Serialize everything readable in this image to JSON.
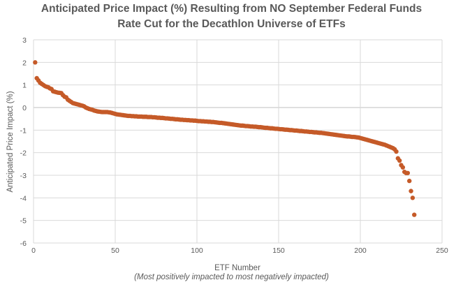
{
  "chart_data": {
    "type": "scatter",
    "title_lines": [
      "Anticipated Price Impact (%) Resulting from NO September Federal Funds",
      "Rate Cut for the Decathlon Universe of ETFs"
    ],
    "xlabel": "ETF Number",
    "xlabel_sub": "(Most positively impacted to most negatively impacted)",
    "ylabel": "Anticipated Price Impact (%)",
    "xlim": [
      0,
      250
    ],
    "ylim": [
      -6,
      3
    ],
    "xticks": [
      0,
      50,
      100,
      150,
      200,
      250
    ],
    "yticks": [
      3,
      2,
      1,
      0,
      -1,
      -2,
      -3,
      -4,
      -5,
      -6
    ],
    "grid": true,
    "marker_color": "#C55A28",
    "series": [
      {
        "name": "ETFs",
        "x_start": 1,
        "values": [
          2.0,
          1.3,
          1.2,
          1.1,
          1.05,
          1.0,
          0.95,
          0.92,
          0.9,
          0.85,
          0.82,
          0.72,
          0.7,
          0.68,
          0.66,
          0.65,
          0.64,
          0.55,
          0.48,
          0.45,
          0.35,
          0.3,
          0.25,
          0.2,
          0.18,
          0.16,
          0.14,
          0.12,
          0.1,
          0.08,
          0.05,
          0.0,
          -0.03,
          -0.06,
          -0.08,
          -0.1,
          -0.13,
          -0.15,
          -0.17,
          -0.18,
          -0.19,
          -0.2,
          -0.2,
          -0.2,
          -0.2,
          -0.21,
          -0.22,
          -0.24,
          -0.26,
          -0.28,
          -0.3,
          -0.31,
          -0.32,
          -0.33,
          -0.34,
          -0.35,
          -0.36,
          -0.37,
          -0.37,
          -0.38,
          -0.38,
          -0.39,
          -0.39,
          -0.4,
          -0.4,
          -0.4,
          -0.41,
          -0.41,
          -0.41,
          -0.42,
          -0.42,
          -0.42,
          -0.43,
          -0.43,
          -0.44,
          -0.45,
          -0.45,
          -0.46,
          -0.46,
          -0.47,
          -0.48,
          -0.48,
          -0.49,
          -0.5,
          -0.5,
          -0.51,
          -0.52,
          -0.52,
          -0.53,
          -0.54,
          -0.54,
          -0.55,
          -0.55,
          -0.56,
          -0.56,
          -0.57,
          -0.57,
          -0.58,
          -0.58,
          -0.59,
          -0.6,
          -0.6,
          -0.61,
          -0.61,
          -0.62,
          -0.62,
          -0.63,
          -0.63,
          -0.64,
          -0.64,
          -0.65,
          -0.66,
          -0.67,
          -0.68,
          -0.68,
          -0.69,
          -0.7,
          -0.71,
          -0.72,
          -0.73,
          -0.74,
          -0.75,
          -0.76,
          -0.77,
          -0.78,
          -0.79,
          -0.8,
          -0.8,
          -0.81,
          -0.82,
          -0.82,
          -0.83,
          -0.84,
          -0.84,
          -0.85,
          -0.85,
          -0.86,
          -0.87,
          -0.87,
          -0.88,
          -0.89,
          -0.9,
          -0.9,
          -0.91,
          -0.92,
          -0.92,
          -0.93,
          -0.94,
          -0.94,
          -0.95,
          -0.96,
          -0.96,
          -0.97,
          -0.98,
          -0.98,
          -0.99,
          -1.0,
          -1.0,
          -1.01,
          -1.02,
          -1.02,
          -1.03,
          -1.04,
          -1.04,
          -1.05,
          -1.06,
          -1.06,
          -1.07,
          -1.08,
          -1.08,
          -1.09,
          -1.1,
          -1.1,
          -1.11,
          -1.12,
          -1.12,
          -1.13,
          -1.14,
          -1.15,
          -1.16,
          -1.17,
          -1.18,
          -1.19,
          -1.2,
          -1.21,
          -1.22,
          -1.23,
          -1.24,
          -1.25,
          -1.26,
          -1.27,
          -1.28,
          -1.28,
          -1.29,
          -1.3,
          -1.3,
          -1.31,
          -1.32,
          -1.33,
          -1.35,
          -1.37,
          -1.39,
          -1.41,
          -1.43,
          -1.45,
          -1.47,
          -1.49,
          -1.51,
          -1.53,
          -1.55,
          -1.57,
          -1.59,
          -1.61,
          -1.63,
          -1.65,
          -1.68,
          -1.71,
          -1.74,
          -1.77,
          -1.8,
          -1.85,
          -1.95,
          -2.25,
          -2.35,
          -2.55,
          -2.65,
          -2.85,
          -2.9,
          -2.9,
          -3.25,
          -3.7,
          -4.0,
          -4.75
        ]
      }
    ]
  }
}
